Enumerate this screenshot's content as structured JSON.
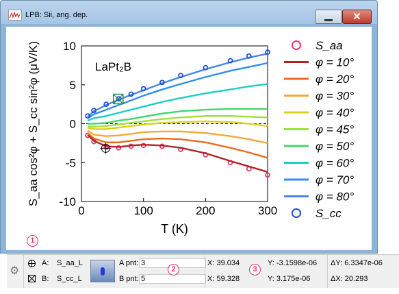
{
  "window": {
    "title": "LPB: Sii, ang. dep."
  },
  "chart_data": {
    "type": "line",
    "annotation": "LaPt₂B",
    "xlabel": "T (K)",
    "ylabel": "S_aa cos²φ + S_cc sin²φ (μV/K)",
    "xlim": [
      0,
      300
    ],
    "ylim": [
      -10,
      10
    ],
    "xticks": [
      0,
      100,
      200,
      300
    ],
    "yticks": [
      -10,
      -5,
      0,
      5,
      10
    ],
    "x": [
      10,
      20,
      40,
      60,
      80,
      100,
      130,
      160,
      200,
      240,
      270,
      300
    ],
    "legend_position": "right",
    "series": [
      {
        "name": "S_aa",
        "marker": "circle",
        "color": "#e8357a",
        "values": [
          -1.5,
          -2.3,
          -3.0,
          -3.1,
          -2.9,
          -2.8,
          -2.9,
          -3.3,
          -4.0,
          -5.0,
          -5.8,
          -6.6
        ]
      },
      {
        "name": "φ = 10°",
        "color": "#b22222",
        "values": [
          -1.4,
          -2.2,
          -2.9,
          -3.0,
          -2.8,
          -2.7,
          -2.8,
          -3.1,
          -3.8,
          -4.8,
          -5.5,
          -6.2
        ]
      },
      {
        "name": "φ = 20°",
        "color": "#f06a1a",
        "values": [
          -1.2,
          -1.9,
          -2.4,
          -2.4,
          -2.2,
          -2.0,
          -1.9,
          -2.0,
          -2.4,
          -3.1,
          -3.7,
          -4.4
        ]
      },
      {
        "name": "φ = 30°",
        "color": "#f8a53a",
        "values": [
          -0.9,
          -1.4,
          -1.6,
          -1.5,
          -1.3,
          -1.1,
          -1.0,
          -1.0,
          -1.2,
          -1.6,
          -2.0,
          -2.5
        ]
      },
      {
        "name": "φ = 40°",
        "color": "#d8d21c",
        "values": [
          -0.5,
          -0.7,
          -0.7,
          -0.5,
          -0.3,
          -0.1,
          0.1,
          0.2,
          0.3,
          0.2,
          0.0,
          -0.3
        ]
      },
      {
        "name": "φ = 45°",
        "color": "#9fe03a",
        "values": [
          -0.3,
          -0.4,
          -0.3,
          -0.1,
          0.1,
          0.3,
          0.6,
          0.8,
          1.0,
          1.0,
          0.9,
          0.8
        ]
      },
      {
        "name": "φ = 50°",
        "color": "#3ed86a",
        "values": [
          0.0,
          0.0,
          0.1,
          0.4,
          0.6,
          0.9,
          1.3,
          1.6,
          1.8,
          1.9,
          1.9,
          1.9
        ]
      },
      {
        "name": "φ = 60°",
        "color": "#1ccdc6",
        "values": [
          0.4,
          0.7,
          1.0,
          1.4,
          1.8,
          2.2,
          2.8,
          3.3,
          3.9,
          4.4,
          4.8,
          5.1
        ]
      },
      {
        "name": "φ = 70°",
        "color": "#2f8ff0",
        "values": [
          0.7,
          1.2,
          1.8,
          2.4,
          3.0,
          3.6,
          4.4,
          5.1,
          6.0,
          6.8,
          7.3,
          7.8
        ]
      },
      {
        "name": "φ = 80°",
        "color": "#4a86e8",
        "values": [
          0.9,
          1.6,
          2.4,
          3.1,
          3.7,
          4.3,
          5.2,
          6.0,
          7.0,
          7.9,
          8.5,
          9.0
        ]
      },
      {
        "name": "S_cc",
        "marker": "circle",
        "color": "#1f4fd8",
        "values": [
          1.0,
          1.7,
          2.5,
          3.2,
          3.8,
          4.5,
          5.3,
          6.2,
          7.2,
          8.1,
          8.7,
          9.2
        ]
      }
    ]
  },
  "markers": {
    "one": "1",
    "two": "2",
    "three": "3"
  },
  "cursor_panel": {
    "a_label": "A:",
    "a_trace": "S_aa_L",
    "b_label": "B:",
    "b_trace": "S_cc_L",
    "a_pnt_label": "A pnt:",
    "a_pnt": "3",
    "b_pnt_label": "B pnt:",
    "b_pnt": "5",
    "x_a": "X: 39.034",
    "y_a": "Y: -3.1598e-06",
    "x_b": "X: 59.328",
    "y_b": "Y: 3.175e-06",
    "dy": "ΔY: 6.3347e-06",
    "dx": "ΔX: 20.293"
  }
}
